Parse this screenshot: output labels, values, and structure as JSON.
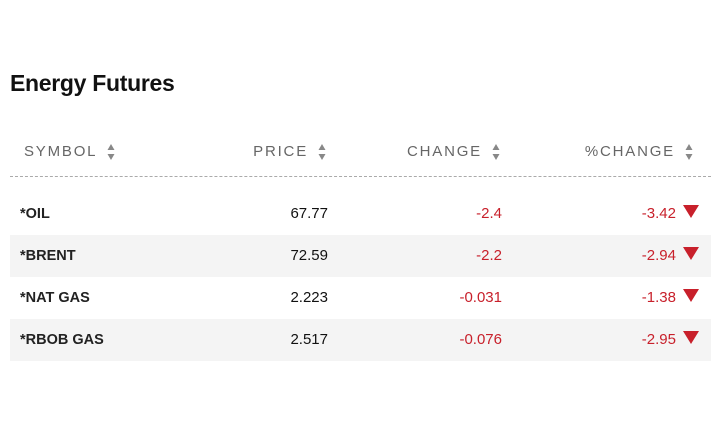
{
  "title": "Energy Futures",
  "table": {
    "headers": [
      "SYMBOL",
      "PRICE",
      "CHANGE",
      "%CHANGE"
    ],
    "rows": [
      [
        "*OIL",
        "67.77",
        "-2.4",
        "-3.42"
      ],
      [
        "*BRENT",
        "72.59",
        "-2.2",
        "-2.94"
      ],
      [
        "*NAT GAS",
        "2.223",
        "-0.031",
        "-1.38"
      ],
      [
        "*RBOB GAS",
        "2.517",
        "-0.076",
        "-2.95"
      ]
    ]
  }
}
